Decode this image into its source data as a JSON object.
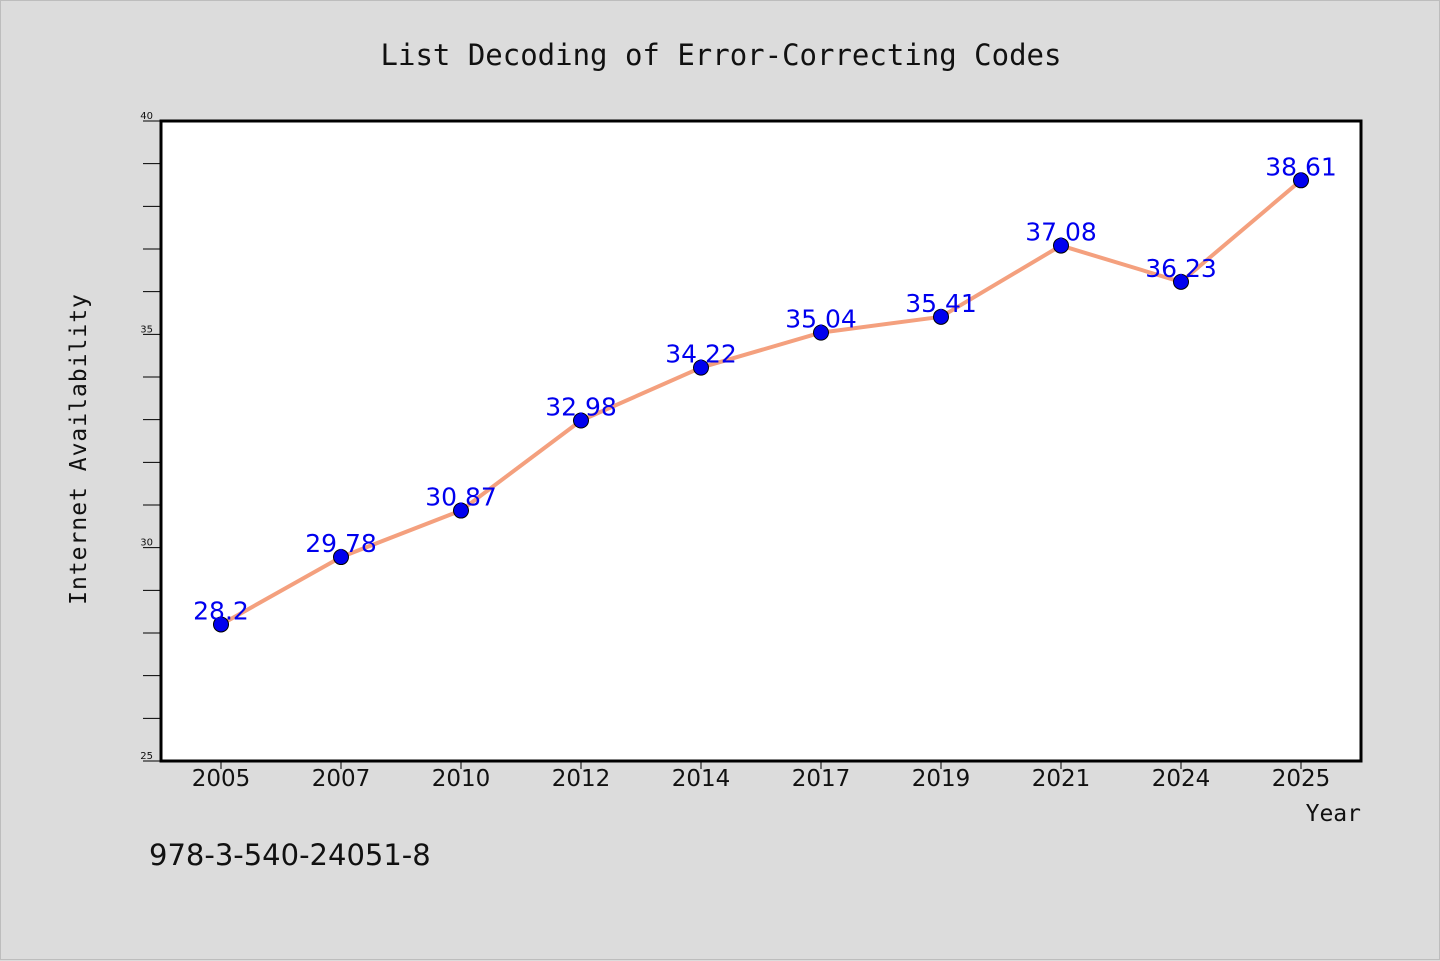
{
  "chart_data": {
    "type": "line",
    "title": "List Decoding of Error-Correcting Codes",
    "xlabel": "Year",
    "ylabel": "Internet Availability",
    "categories": [
      "2005",
      "2007",
      "2010",
      "2012",
      "2014",
      "2017",
      "2019",
      "2021",
      "2024",
      "2025"
    ],
    "series": [
      {
        "values": [
          28.2,
          29.78,
          30.87,
          32.98,
          34.22,
          35.04,
          35.41,
          37.08,
          36.23,
          38.61
        ],
        "labels": [
          "28.2",
          "29.78",
          "30.87",
          "32.98",
          "34.22",
          "35.04",
          "35.41",
          "37.08",
          "36.23",
          "38.61"
        ]
      }
    ],
    "ylim": [
      25,
      40
    ],
    "yticks": [
      25,
      30,
      35,
      40
    ],
    "ytick_labels": [
      "25",
      "30",
      "35",
      "40"
    ],
    "grid": false,
    "line_color": "#f4a07e",
    "marker_color": "#0000ee",
    "label_color": "#0000ee"
  },
  "footer": {
    "isbn": "978-3-540-24051-8"
  }
}
